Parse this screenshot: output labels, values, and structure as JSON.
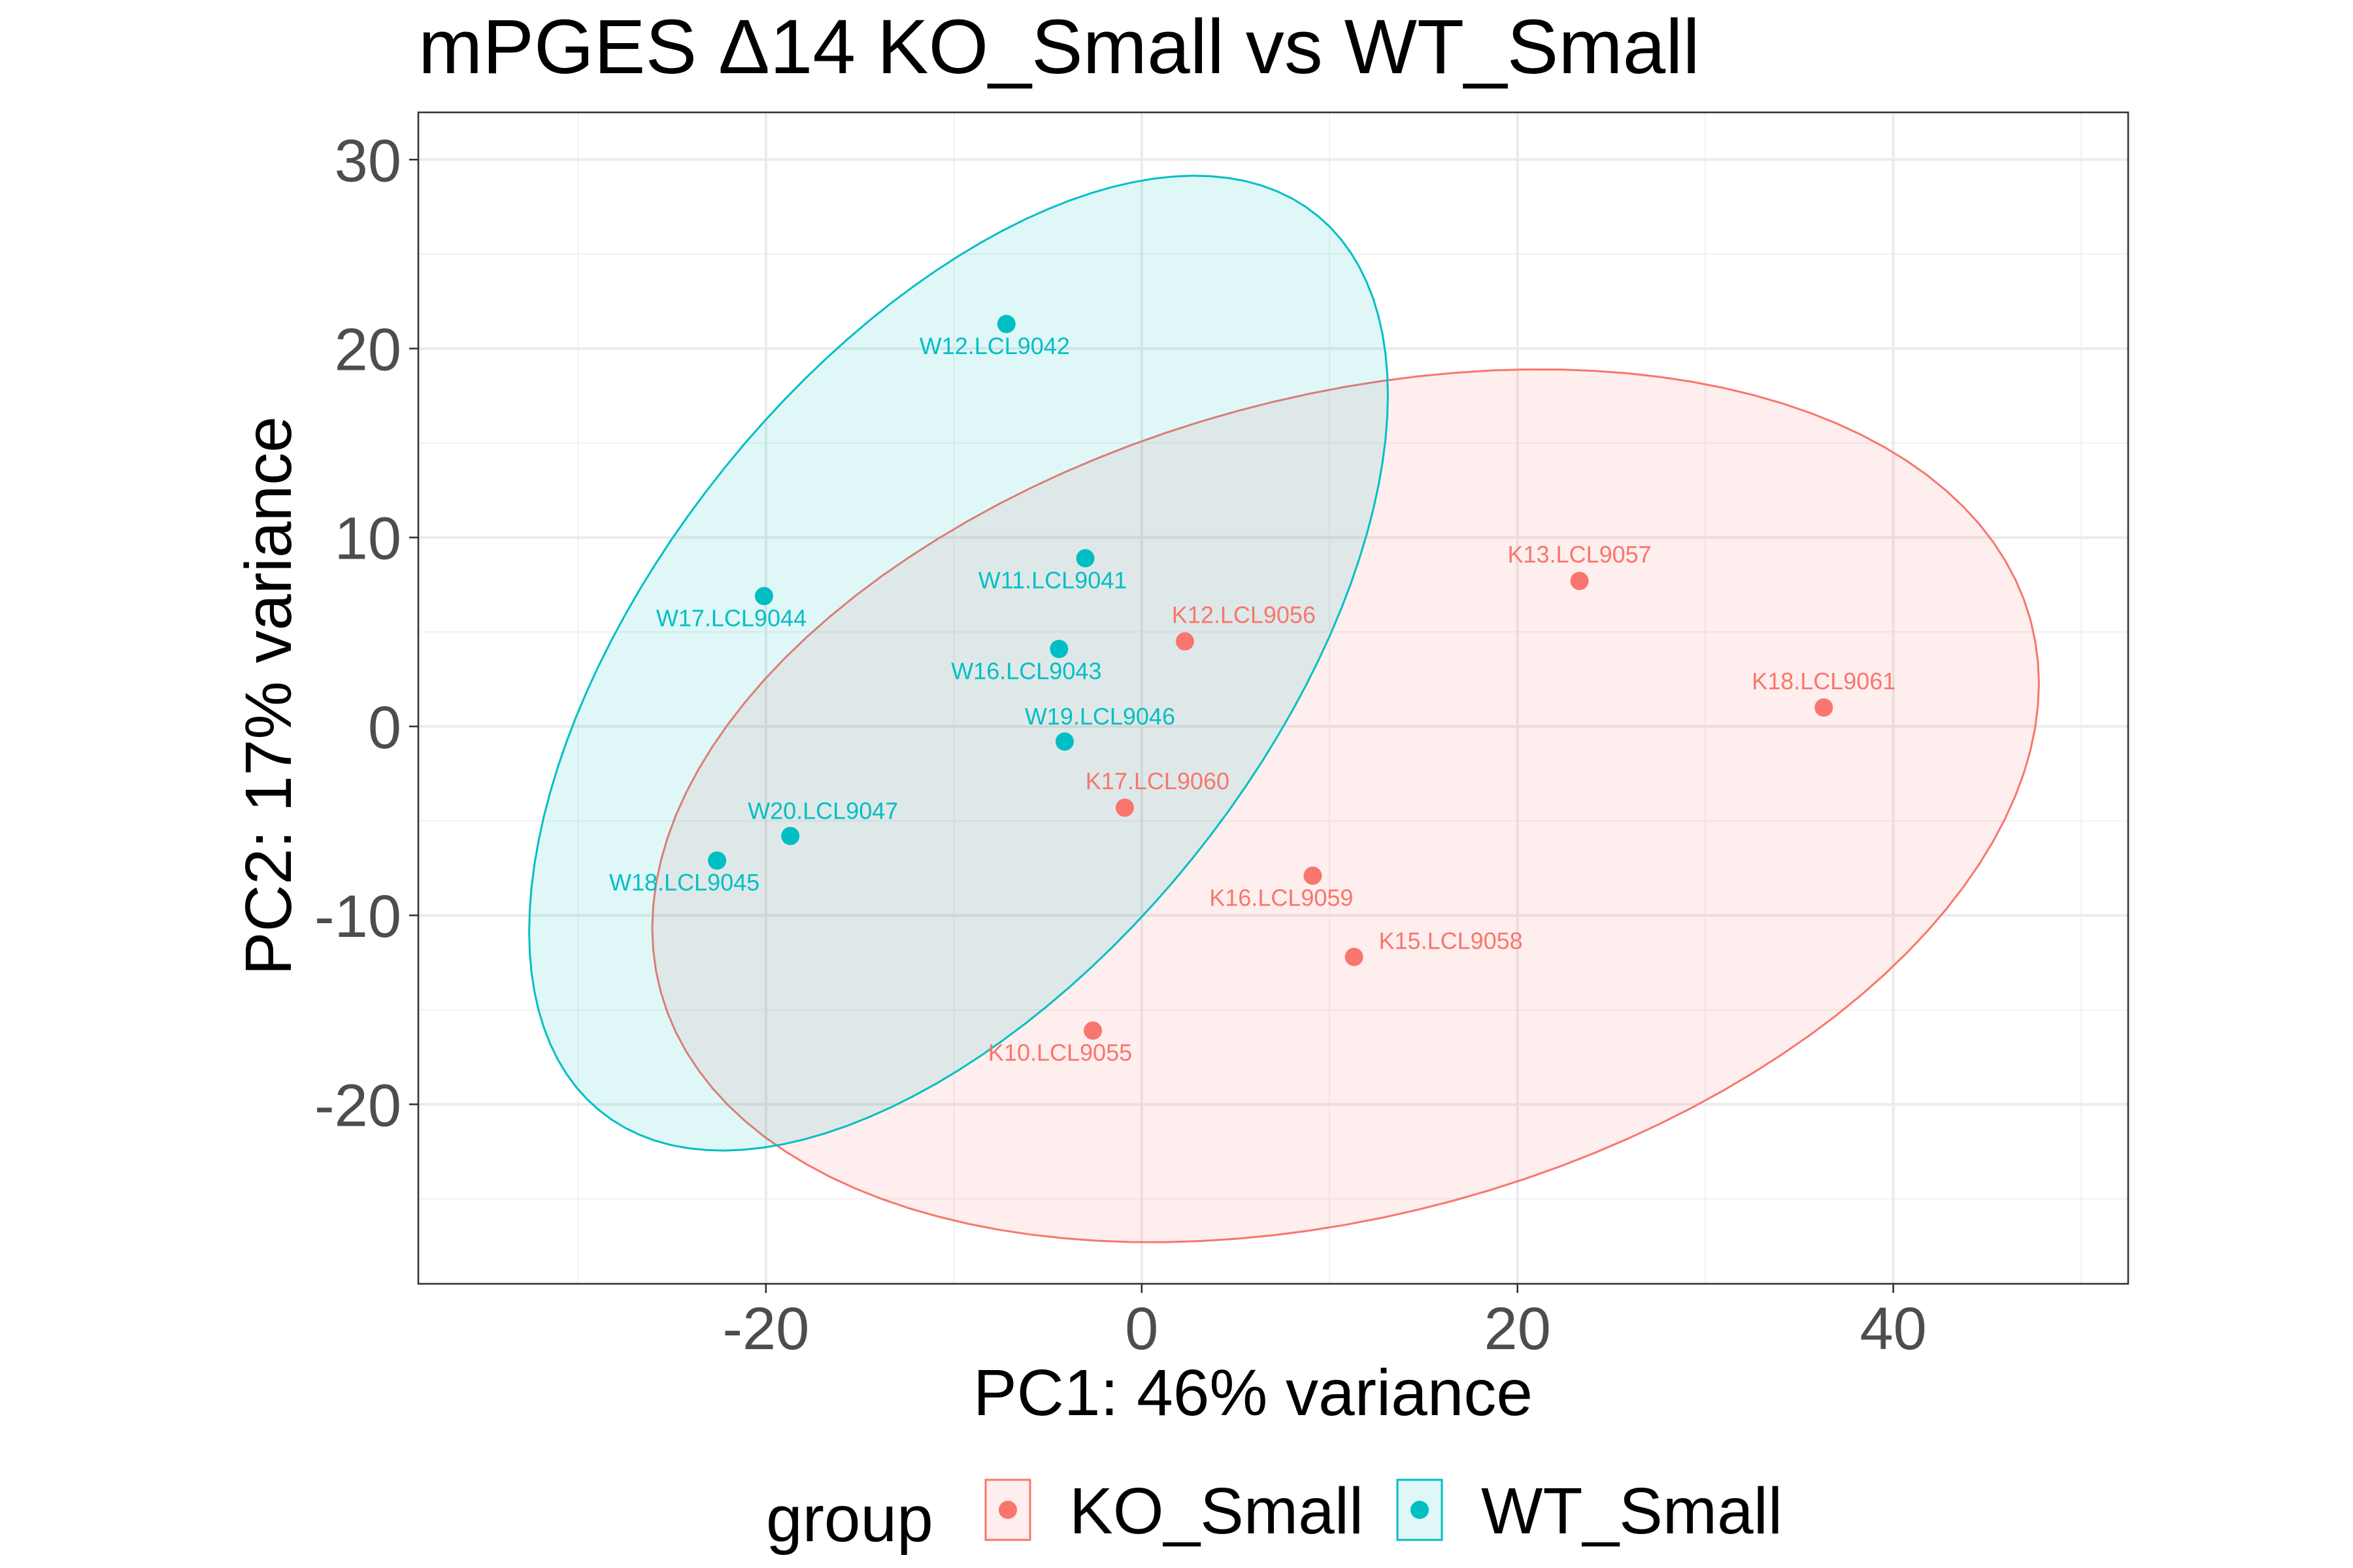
{
  "chart_data": {
    "type": "scatter",
    "title": "mPGES Δ14 KO_Small vs WT_Small",
    "xlabel": "PC1: 46% variance",
    "ylabel": "PC2: 17% variance",
    "xlim": [
      -38.5,
      52.5
    ],
    "ylim": [
      -29.5,
      32.5
    ],
    "x_ticks": [
      -20,
      0,
      20,
      40
    ],
    "x_tick_labels": [
      "-20",
      "0",
      "20",
      "40"
    ],
    "y_ticks": [
      -20,
      -10,
      0,
      10,
      20,
      30
    ],
    "y_tick_labels": [
      "-20",
      "-10",
      "0",
      "10",
      "20",
      "30"
    ],
    "grid": true,
    "legend": {
      "title": "group",
      "position": "bottom"
    },
    "series": [
      {
        "name": "KO_Small",
        "color": "#F8766D",
        "points": [
          {
            "label": "K13.LCL9057",
            "x": 23.3,
            "y": 7.7
          },
          {
            "label": "K18.LCL9061",
            "x": 36.3,
            "y": 1.0
          },
          {
            "label": "K12.LCL9056",
            "x": 2.3,
            "y": 4.5
          },
          {
            "label": "K17.LCL9060",
            "x": -0.9,
            "y": -4.3
          },
          {
            "label": "K16.LCL9059",
            "x": 9.1,
            "y": -7.9
          },
          {
            "label": "K15.LCL9058",
            "x": 11.3,
            "y": -12.2
          },
          {
            "label": "K10.LCL9055",
            "x": -2.6,
            "y": -16.1
          }
        ]
      },
      {
        "name": "WT_Small",
        "color": "#00BFC4",
        "points": [
          {
            "label": "W12.LCL9042",
            "x": -7.2,
            "y": 21.3
          },
          {
            "label": "W11.LCL9041",
            "x": -3.0,
            "y": 8.9
          },
          {
            "label": "W17.LCL9044",
            "x": -20.1,
            "y": 6.9
          },
          {
            "label": "W16.LCL9043",
            "x": -4.4,
            "y": 4.1
          },
          {
            "label": "W19.LCL9046",
            "x": -4.1,
            "y": -0.8
          },
          {
            "label": "W20.LCL9047",
            "x": -18.7,
            "y": -5.8
          },
          {
            "label": "W18.LCL9045",
            "x": -22.6,
            "y": -7.1
          }
        ]
      }
    ],
    "ellipses": [
      {
        "group": "KO_Small",
        "color": "#F8766D",
        "fill": "#F8766D",
        "fill_opacity": 0.12,
        "center": [
          10.85,
          -4.2
        ],
        "x_extent": [
          -25.9,
          47.9
        ],
        "y_extent": [
          -27.0,
          19.2
        ]
      },
      {
        "group": "WT_Small",
        "color": "#00BFC4",
        "fill": "#00BFC4",
        "fill_opacity": 0.12,
        "center": [
          -9.75,
          3.35
        ],
        "x_extent": [
          -34.4,
          11.3
        ],
        "y_extent": [
          -21.9,
          29.7
        ]
      }
    ]
  }
}
